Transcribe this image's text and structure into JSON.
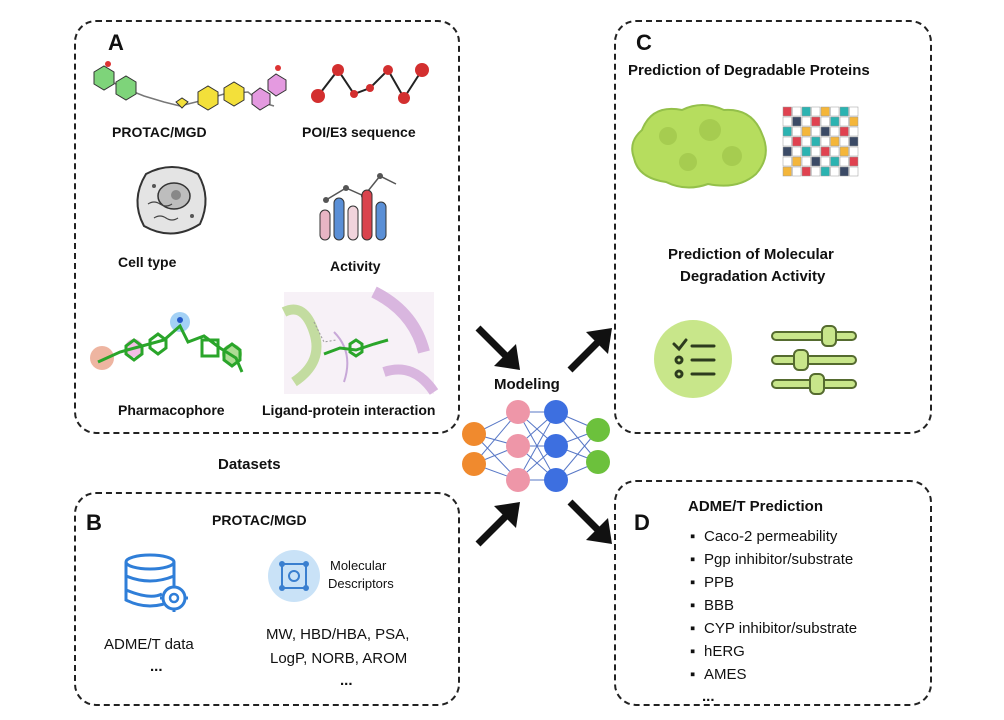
{
  "panel_a": {
    "letter": "A",
    "items": {
      "protac": "PROTAC/MGD",
      "sequence": "POI/E3 sequence",
      "cell": "Cell type",
      "activity": "Activity",
      "pharmacophore": "Pharmacophore",
      "interaction": "Ligand-protein interaction"
    }
  },
  "datasets_label": "Datasets",
  "panel_b": {
    "letter": "B",
    "title": "PROTAC/MGD",
    "admet_data": "ADME/T data",
    "admet_ellipsis": "...",
    "desc_line1": "Molecular",
    "desc_line2": "Descriptors",
    "desc_values_1": "MW, HBD/HBA, PSA,",
    "desc_values_2": "LogP, NORB, AROM",
    "desc_ellipsis": "..."
  },
  "modeling_label": "Modeling",
  "panel_c": {
    "letter": "C",
    "title1": "Prediction of Degradable Proteins",
    "title2_line1": "Prediction of Molecular",
    "title2_line2": "Degradation Activity"
  },
  "panel_d": {
    "letter": "D",
    "title": "ADME/T Prediction",
    "items": [
      "Caco-2 permeability",
      "Pgp inhibitor/substrate",
      "PPB",
      "BBB",
      "CYP inhibitor/substrate",
      "hERG",
      "AMES"
    ],
    "ellipsis": "..."
  },
  "colors": {
    "nn_orange": "#f08a2e",
    "nn_pink": "#ee96a8",
    "nn_blue": "#3d6fe0",
    "nn_green": "#6cc13c",
    "protein": "#b6dd5e",
    "sequence": "#d32f2f",
    "icon_blue": "#2f7ed8",
    "icon_green": "#c8e68a"
  }
}
